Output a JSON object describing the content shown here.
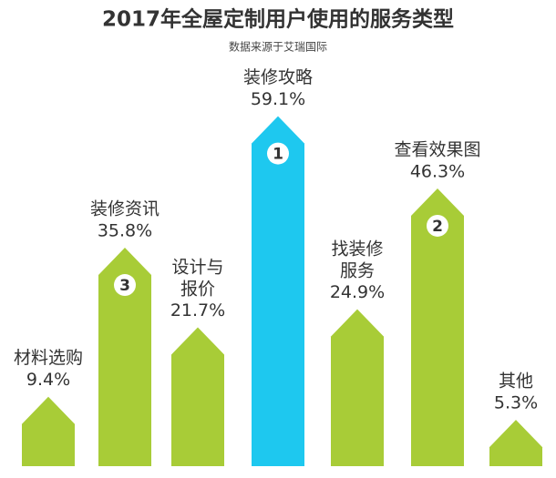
{
  "chart_data": {
    "type": "arrow-bar",
    "title": "2017年全屋定制用户使用的服务类型",
    "subtitle": "数据来源于艾瑞国际",
    "categories": [
      "材料选购",
      "装修资讯",
      "设计与\n报价",
      "装修攻略",
      "找装修\n服务",
      "查看效果图",
      "其他"
    ],
    "values": [
      9.4,
      35.8,
      21.7,
      59.1,
      24.9,
      46.3,
      5.3
    ],
    "value_labels": [
      "9.4%",
      "35.8%",
      "21.7%",
      "59.1%",
      "24.9%",
      "46.3%",
      "5.3%"
    ],
    "colors": [
      "#a8cc37",
      "#a8cc37",
      "#a8cc37",
      "#1ec8ef",
      "#a8cc37",
      "#a8cc37",
      "#a8cc37"
    ],
    "badges": [
      {
        "index": 3,
        "rank": 1
      },
      {
        "index": 5,
        "rank": 2
      },
      {
        "index": 1,
        "rank": 3
      }
    ]
  }
}
